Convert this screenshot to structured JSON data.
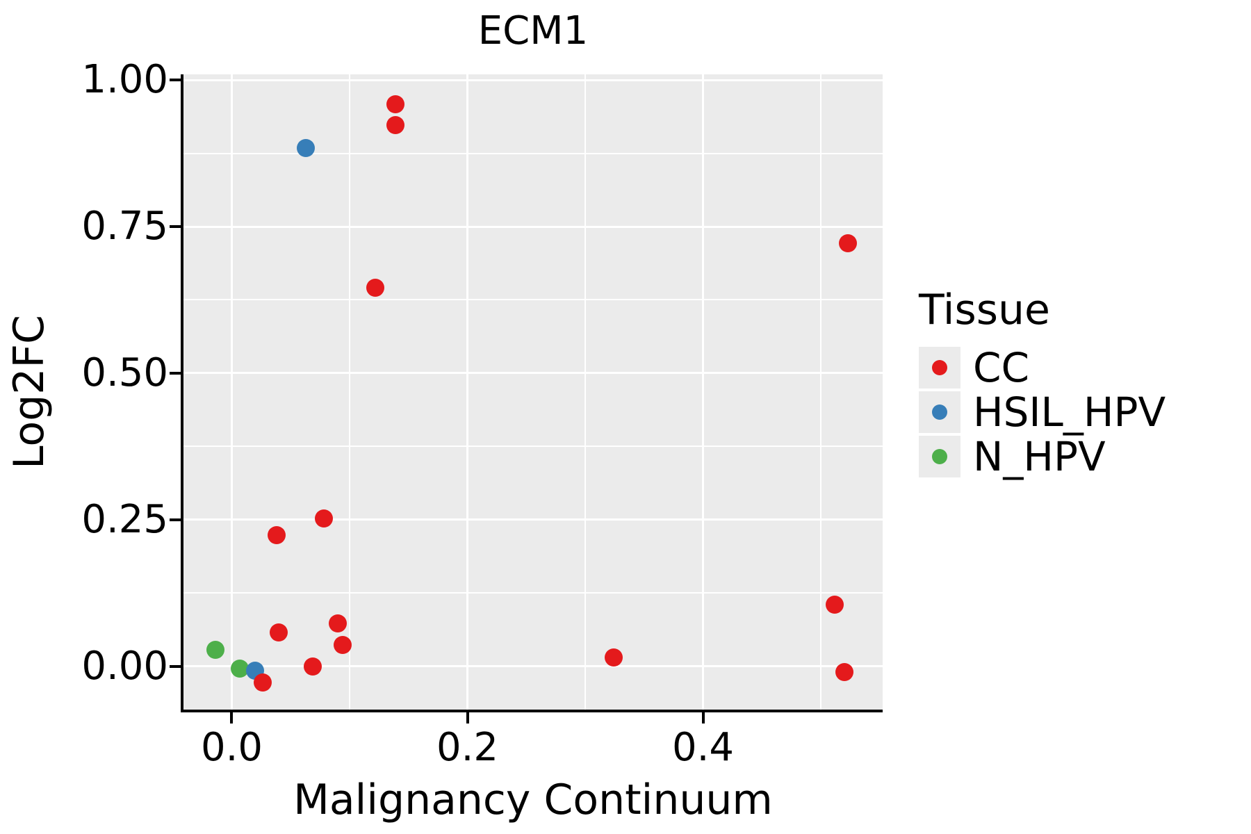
{
  "title": "ECM1",
  "axes": {
    "x_label": "Malignancy Continuum",
    "y_label": "Log2FC",
    "x_tick_labels": [
      "0.0",
      "0.2",
      "0.4"
    ],
    "y_tick_labels": [
      "0.00",
      "0.25",
      "0.50",
      "0.75",
      "1.00"
    ]
  },
  "legend": {
    "title": "Tissue",
    "items": [
      {
        "label": "CC",
        "color": "#E41A1C"
      },
      {
        "label": "HSIL_HPV",
        "color": "#377EB8"
      },
      {
        "label": "N_HPV",
        "color": "#4DAF4A"
      }
    ]
  },
  "colors": {
    "panel_background": "#EBEBEB",
    "gridline": "#FFFFFF",
    "axis": "#000000",
    "cc": "#E41A1C",
    "hsil_hpv": "#377EB8",
    "n_hpv": "#4DAF4A"
  },
  "chart_data": {
    "type": "scatter",
    "title": "ECM1",
    "xlabel": "Malignancy Continuum",
    "ylabel": "Log2FC",
    "xlim": [
      -0.041,
      0.5525
    ],
    "ylim": [
      -0.0735,
      1.0095
    ],
    "x_major_ticks": [
      0.0,
      0.2,
      0.4
    ],
    "x_tick_labels": [
      "0.0",
      "0.2",
      "0.4"
    ],
    "x_minor_gridlines": [
      0.1,
      0.3,
      0.5
    ],
    "y_major_ticks": [
      0.0,
      0.25,
      0.5,
      0.75,
      1.0
    ],
    "y_tick_labels": [
      "0.00",
      "0.25",
      "0.50",
      "0.75",
      "1.00"
    ],
    "y_minor_gridlines": [
      0.125,
      0.375,
      0.625,
      0.875
    ],
    "grid": true,
    "legend_position": "right",
    "legend_title": "Tissue",
    "series": [
      {
        "name": "N_HPV",
        "color": "#4DAF4A",
        "points": [
          [
            -0.014,
            0.028
          ],
          [
            0.007,
            -0.004
          ]
        ]
      },
      {
        "name": "HSIL_HPV",
        "color": "#377EB8",
        "points": [
          [
            0.063,
            0.884
          ],
          [
            0.02,
            -0.007
          ]
        ]
      },
      {
        "name": "CC",
        "color": "#E41A1C",
        "points": [
          [
            0.139,
            0.959
          ],
          [
            0.139,
            0.923
          ],
          [
            0.122,
            0.646
          ],
          [
            0.523,
            0.722
          ],
          [
            0.078,
            0.252
          ],
          [
            0.038,
            0.224
          ],
          [
            0.512,
            0.106
          ],
          [
            0.09,
            0.073
          ],
          [
            0.04,
            0.058
          ],
          [
            0.094,
            0.037
          ],
          [
            0.324,
            0.015
          ],
          [
            0.069,
            0.0
          ],
          [
            0.52,
            -0.009
          ],
          [
            0.026,
            -0.027
          ]
        ]
      }
    ]
  }
}
